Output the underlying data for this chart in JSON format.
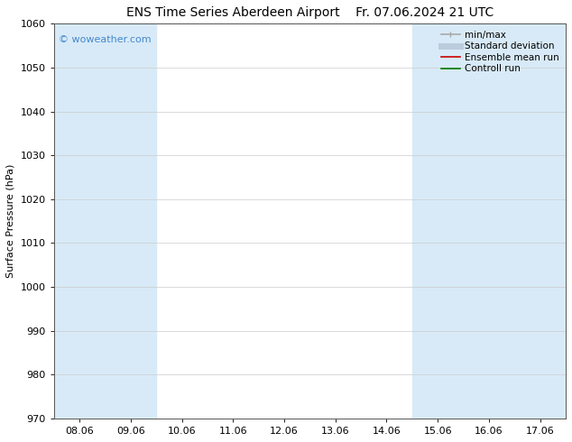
{
  "title_left": "ENS Time Series Aberdeen Airport",
  "title_right": "Fr. 07.06.2024 21 UTC",
  "ylabel": "Surface Pressure (hPa)",
  "ylim": [
    970,
    1060
  ],
  "yticks": [
    970,
    980,
    990,
    1000,
    1010,
    1020,
    1030,
    1040,
    1050,
    1060
  ],
  "x_labels": [
    "08.06",
    "09.06",
    "10.06",
    "11.06",
    "12.06",
    "13.06",
    "14.06",
    "15.06",
    "16.06",
    "17.06"
  ],
  "shaded_color": "#d8eaf7",
  "background_color": "#ffffff",
  "watermark_text": "© woweather.com",
  "watermark_color": "#4488cc",
  "legend_entries": [
    {
      "label": "min/max",
      "color": "#aaaaaa",
      "lw": 1.2
    },
    {
      "label": "Standard deviation",
      "color": "#bbccdd",
      "lw": 5
    },
    {
      "label": "Ensemble mean run",
      "color": "#cc0000",
      "lw": 1.2
    },
    {
      "label": "Controll run",
      "color": "#007700",
      "lw": 1.2
    }
  ],
  "title_fontsize": 10,
  "ylabel_fontsize": 8,
  "tick_fontsize": 8,
  "legend_fontsize": 7.5,
  "watermark_fontsize": 8
}
